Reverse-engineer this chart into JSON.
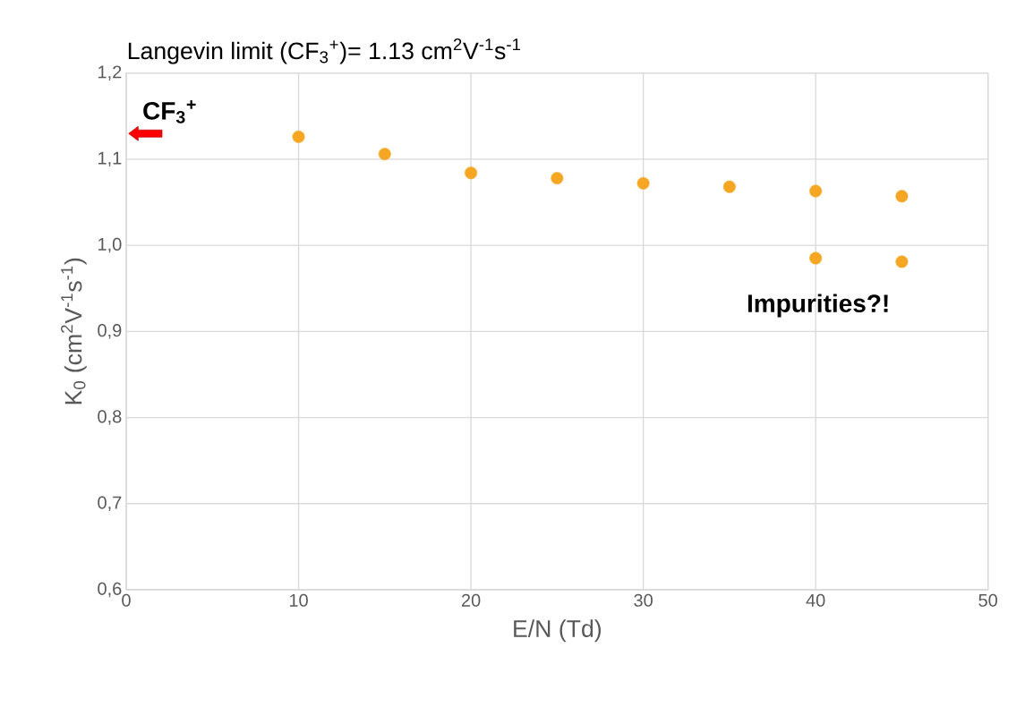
{
  "chart_data": {
    "type": "scatter",
    "title": "Langevin limit (CF$_{3}$$^{+}$)= 1.13 cm$^{2}$V$^{-1}$s$^{-1}$",
    "xlabel": "E/N (Td)",
    "ylabel": "K$_{0}$ (cm$^{2}$V$^{-1}$s$^{-1}$)",
    "x": [
      10,
      15,
      20,
      25,
      30,
      35,
      40,
      45,
      40,
      45
    ],
    "values": [
      1.126,
      1.106,
      1.084,
      1.078,
      1.072,
      1.068,
      1.063,
      1.057,
      0.985,
      0.981
    ],
    "color": "#f5a623",
    "marker": "circle",
    "grid": true,
    "xlim": [
      0,
      50
    ],
    "xticks": [
      0,
      10,
      20,
      30,
      40,
      50
    ],
    "ylim": [
      0.6,
      1.2
    ],
    "yticks": [
      {
        "value": 0.6,
        "label": "0,6"
      },
      {
        "value": 0.7,
        "label": "0,7"
      },
      {
        "value": 0.8,
        "label": "0,8"
      },
      {
        "value": 0.9,
        "label": "0,9"
      },
      {
        "value": 1.0,
        "label": "1,0"
      },
      {
        "value": 1.1,
        "label": "1,1"
      },
      {
        "value": 1.2,
        "label": "1,2"
      }
    ],
    "annotations": [
      "CF$_{3}$$^{+}$",
      "Impurities?!"
    ]
  }
}
